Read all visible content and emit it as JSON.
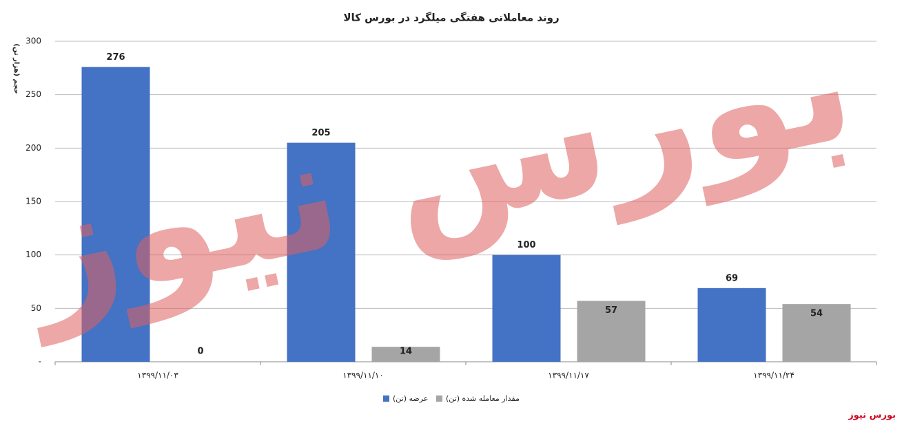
{
  "chart_data": {
    "type": "bar",
    "title": "روند معاملاتی هفتگی میلگرد در بورس کالا",
    "y_label": "حجم (هزار تن)",
    "categories": [
      "۱۳۹۹/۱۱/۰۳",
      "۱۳۹۹/۱۱/۱۰",
      "۱۳۹۹/۱۱/۱۷",
      "۱۳۹۹/۱۱/۲۴"
    ],
    "series": [
      {
        "name": "عرضه (تن)",
        "color": "#4472c4",
        "values": [
          276,
          205,
          100,
          69
        ]
      },
      {
        "name": "مقدار معامله شده (تن)",
        "color": "#a5a5a5",
        "values": [
          0,
          14,
          57,
          54
        ]
      }
    ],
    "ylim": [
      0,
      300
    ],
    "yticks": [
      {
        "value": 0,
        "label": "-"
      },
      50,
      100,
      150,
      200,
      250,
      300
    ],
    "grid": true,
    "legend": "bottom",
    "watermark": "بورس نیوز",
    "source": "بورس نیوز"
  }
}
